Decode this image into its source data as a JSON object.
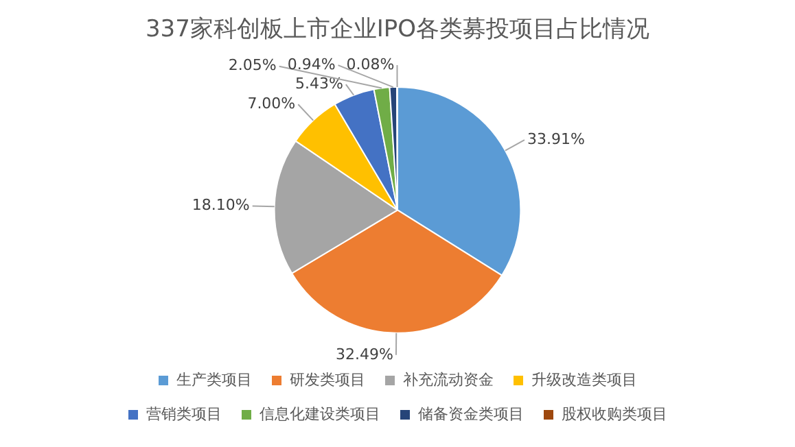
{
  "chart_data": {
    "type": "pie",
    "title": "337家科创板上市企业IPO各类募投项目占比情况",
    "categories": [
      "生产类项目",
      "研发类项目",
      "补充流动资金",
      "升级改造类项目",
      "营销类项目",
      "信息化建设类项目",
      "储备资金类项目",
      "股权收购类项目"
    ],
    "values": [
      33.91,
      32.49,
      18.1,
      7.0,
      5.43,
      2.05,
      0.94,
      0.08
    ],
    "colors": [
      "#5b9bd5",
      "#ed7d31",
      "#a5a5a5",
      "#ffc000",
      "#4472c4",
      "#70ad47",
      "#264478",
      "#9e480e"
    ],
    "value_labels": [
      "33.91%",
      "32.49%",
      "18.10%",
      "7.00%",
      "5.43%",
      "2.05%",
      "0.94%",
      "0.08%"
    ],
    "legend": "bottom"
  }
}
